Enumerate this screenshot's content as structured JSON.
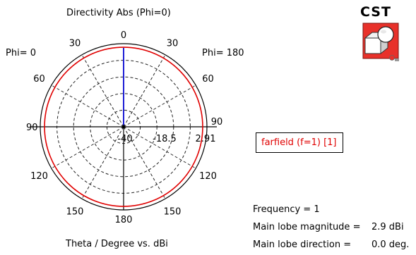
{
  "chart_data": {
    "type": "polar",
    "title": "Directivity Abs (Phi=0)",
    "xlabel": "Theta / Degree vs. dBi",
    "left_label": "Phi=  0",
    "right_label": "Phi= 180",
    "angle_ticks": [
      "0",
      "30",
      "60",
      "90",
      "120",
      "150",
      "180",
      "150",
      "120",
      "90",
      "60",
      "30"
    ],
    "radial_ticks": [
      "-40",
      "-18.5",
      "2.91"
    ],
    "r_range_dbi": [
      -40,
      2.91
    ],
    "grid": true,
    "series": [
      {
        "name": "farfield (f=1) [1]",
        "color": "#e00000",
        "value_dbi": 2.9
      }
    ],
    "main_lobe": {
      "direction_deg": 0,
      "color": "#1f1fd6"
    }
  },
  "legend": {
    "label": "farfield (f=1) [1]",
    "color": "#e00000"
  },
  "info": {
    "frequency": "Frequency = 1",
    "mag_label": "Main lobe magnitude =",
    "mag_value": "2.9 dBi",
    "dir_label": "Main lobe direction =",
    "dir_value": "0.0 deg."
  },
  "logo": {
    "text": "CST",
    "icon": "cst-logo-icon",
    "accent": "#e8312a"
  }
}
